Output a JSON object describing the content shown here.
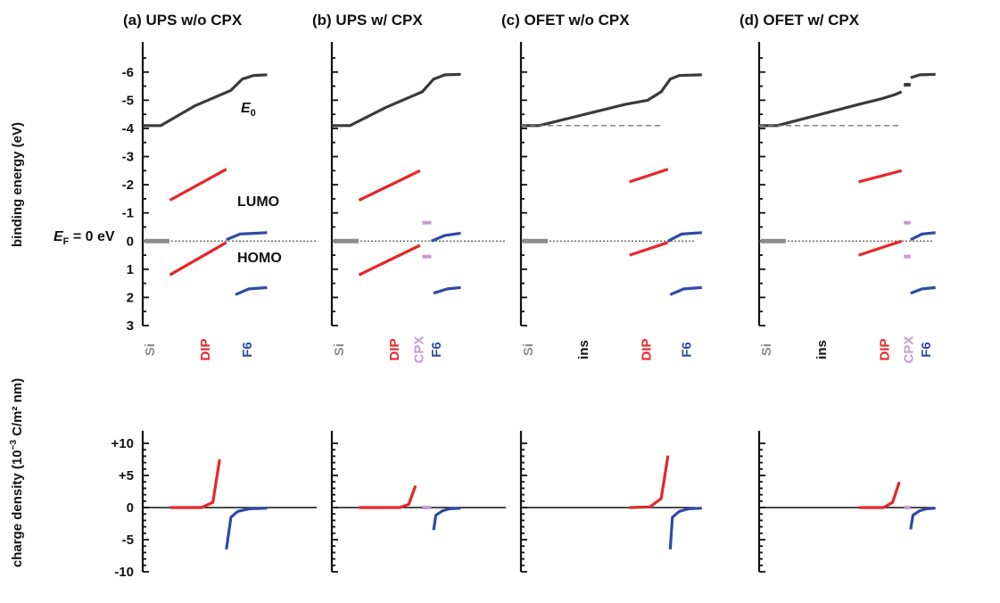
{
  "figure": {
    "ylabel_energy": "binding energy (eV)",
    "ylabel_charge_prefix": "charge density (10",
    "ylabel_charge_exp": "−3",
    "ylabel_charge_suffix": " C/m² nm)",
    "energy_ticks": [
      "-6",
      "-5",
      "-4",
      "-3",
      "-2",
      "-1",
      "0",
      "1",
      "2",
      "3"
    ],
    "charge_ticks": [
      "+10",
      "+5",
      "0",
      "-5",
      "-10"
    ],
    "ef_label_main": "E",
    "ef_label_sub": "F",
    "ef_label_tail": " = 0 eV",
    "e0_main": "E",
    "e0_sub": "0",
    "lumo_label": "LUMO",
    "homo_label": "HOMO"
  },
  "colors": {
    "vacuum": "#3a3a3a",
    "dip": "#e8262a",
    "f6": "#2e4aa6",
    "cpx": "#c79bd0",
    "si": "#8c8c8c",
    "ins": "#111111",
    "axis": "#111111"
  },
  "chart_data": [
    {
      "type": "line",
      "title": "(a) UPS w/o CPX",
      "layers": [
        "Si",
        "DIP",
        "F6"
      ],
      "energy_axis": {
        "label": "binding energy (eV)",
        "ylim": [
          -6.5,
          3
        ],
        "inverted": true
      },
      "charge_axis": {
        "label": "charge density (10−3 C/m² nm)",
        "ylim": [
          -10,
          10
        ]
      },
      "series": [
        {
          "name": "E0",
          "x": [
            0,
            0.08,
            0.23,
            0.39,
            0.44,
            0.49,
            0.55
          ],
          "y": [
            -4.1,
            -4.1,
            -4.8,
            -5.35,
            -5.75,
            -5.88,
            -5.9
          ]
        },
        {
          "name": "LUMO",
          "x": [
            0.12,
            0.37
          ],
          "y": [
            -1.45,
            -2.55
          ]
        },
        {
          "name": "HOMO",
          "x": [
            0.12,
            0.37
          ],
          "y": [
            1.2,
            0.05
          ]
        },
        {
          "name": "F6 LUMO",
          "x": [
            0.37,
            0.43,
            0.55
          ],
          "y": [
            -0.05,
            -0.25,
            -0.3
          ]
        },
        {
          "name": "F6 HOMO",
          "x": [
            0.41,
            0.47,
            0.55
          ],
          "y": [
            1.9,
            1.7,
            1.65
          ]
        },
        {
          "name": "DIP charge",
          "x": [
            0.12,
            0.26,
            0.31,
            0.34
          ],
          "y": [
            0,
            0,
            0.8,
            7.5
          ]
        },
        {
          "name": "F6 charge",
          "x": [
            0.37,
            0.39,
            0.42,
            0.47,
            0.55
          ],
          "y": [
            -6.5,
            -1.5,
            -0.6,
            -0.2,
            -0.1
          ]
        }
      ]
    },
    {
      "type": "line",
      "title": "(b) UPS w/ CPX",
      "layers": [
        "Si",
        "DIP",
        "CPX",
        "F6"
      ],
      "energy_axis": {
        "label": "binding energy (eV)",
        "ylim": [
          -6.5,
          3
        ],
        "inverted": true
      },
      "charge_axis": {
        "label": "charge density (10−3 C/m² nm)",
        "ylim": [
          -10,
          10
        ]
      },
      "series": [
        {
          "name": "E0",
          "x": [
            0,
            0.08,
            0.24,
            0.4,
            0.45,
            0.5,
            0.57
          ],
          "y": [
            -4.1,
            -4.1,
            -4.75,
            -5.3,
            -5.75,
            -5.9,
            -5.92
          ]
        },
        {
          "name": "LUMO",
          "x": [
            0.12,
            0.39
          ],
          "y": [
            -1.45,
            -2.5
          ]
        },
        {
          "name": "HOMO",
          "x": [
            0.12,
            0.39
          ],
          "y": [
            1.2,
            0.15
          ]
        },
        {
          "name": "CPX LUMO",
          "x": [
            0.4,
            0.44
          ],
          "y": [
            -0.65,
            -0.65
          ]
        },
        {
          "name": "CPX HOMO",
          "x": [
            0.4,
            0.44
          ],
          "y": [
            0.55,
            0.55
          ]
        },
        {
          "name": "F6 LUMO",
          "x": [
            0.44,
            0.5,
            0.57
          ],
          "y": [
            0,
            -0.2,
            -0.28
          ]
        },
        {
          "name": "F6 HOMO",
          "x": [
            0.45,
            0.51,
            0.57
          ],
          "y": [
            1.85,
            1.7,
            1.65
          ]
        },
        {
          "name": "DIP charge",
          "x": [
            0.12,
            0.3,
            0.34,
            0.37
          ],
          "y": [
            0,
            0,
            0.5,
            3.4
          ]
        },
        {
          "name": "CPX charge",
          "x": [
            0.4,
            0.44
          ],
          "y": [
            0,
            0
          ]
        },
        {
          "name": "F6 charge",
          "x": [
            0.45,
            0.46,
            0.49,
            0.52,
            0.57
          ],
          "y": [
            -3.5,
            -1.2,
            -0.5,
            -0.2,
            -0.1
          ]
        }
      ]
    },
    {
      "type": "line",
      "title": "(c) OFET w/o CPX",
      "layers": [
        "Si",
        "ins",
        "DIP",
        "F6"
      ],
      "energy_axis": {
        "label": "binding energy (eV)",
        "ylim": [
          -6.5,
          3
        ],
        "inverted": true
      },
      "charge_axis": {
        "label": "charge density (10−3 C/m² nm)",
        "ylim": [
          -10,
          10
        ]
      },
      "series": [
        {
          "name": "E0",
          "x": [
            0,
            0.08,
            0.46,
            0.56,
            0.62,
            0.66,
            0.7,
            0.8
          ],
          "y": [
            -4.1,
            -4.1,
            -4.85,
            -5.0,
            -5.3,
            -5.75,
            -5.88,
            -5.9
          ]
        },
        {
          "name": "Si reference",
          "x": [
            0,
            0.62
          ],
          "y": [
            -4.1,
            -4.1
          ]
        },
        {
          "name": "LUMO",
          "x": [
            0.48,
            0.65
          ],
          "y": [
            -2.1,
            -2.55
          ]
        },
        {
          "name": "HOMO",
          "x": [
            0.48,
            0.65
          ],
          "y": [
            0.5,
            0.05
          ]
        },
        {
          "name": "F6 LUMO",
          "x": [
            0.65,
            0.71,
            0.8
          ],
          "y": [
            0,
            -0.25,
            -0.3
          ]
        },
        {
          "name": "F6 HOMO",
          "x": [
            0.66,
            0.72,
            0.8
          ],
          "y": [
            1.9,
            1.7,
            1.65
          ]
        },
        {
          "name": "DIP charge",
          "x": [
            0.48,
            0.57,
            0.62,
            0.65
          ],
          "y": [
            0,
            0.1,
            1.4,
            8.1
          ]
        },
        {
          "name": "F6 charge",
          "x": [
            0.66,
            0.67,
            0.7,
            0.74,
            0.8
          ],
          "y": [
            -6.5,
            -1.5,
            -0.6,
            -0.2,
            -0.1
          ]
        }
      ]
    },
    {
      "type": "line",
      "title": "(d) OFET w/ CPX",
      "layers": [
        "Si",
        "ins",
        "DIP",
        "CPX",
        "F6"
      ],
      "energy_axis": {
        "label": "binding energy (eV)",
        "ylim": [
          -6.5,
          3
        ],
        "inverted": true
      },
      "charge_axis": {
        "label": "charge density (10−3 C/m² nm)",
        "ylim": [
          -10,
          10
        ]
      },
      "series": [
        {
          "name": "E0",
          "x": [
            0,
            0.08,
            0.44,
            0.54,
            0.6,
            0.63
          ],
          "y": [
            -4.1,
            -4.1,
            -4.85,
            -5.05,
            -5.2,
            -5.3
          ]
        },
        {
          "name": "CPX E0",
          "x": [
            0.64,
            0.67
          ],
          "y": [
            -5.55,
            -5.55
          ]
        },
        {
          "name": "F6 E0",
          "x": [
            0.67,
            0.71,
            0.78
          ],
          "y": [
            -5.8,
            -5.9,
            -5.92
          ]
        },
        {
          "name": "Si reference",
          "x": [
            0,
            0.62
          ],
          "y": [
            -4.1,
            -4.1
          ]
        },
        {
          "name": "LUMO",
          "x": [
            0.44,
            0.63
          ],
          "y": [
            -2.1,
            -2.5
          ]
        },
        {
          "name": "HOMO",
          "x": [
            0.44,
            0.63
          ],
          "y": [
            0.5,
            0.0
          ]
        },
        {
          "name": "CPX LUMO",
          "x": [
            0.64,
            0.67
          ],
          "y": [
            -0.65,
            -0.65
          ]
        },
        {
          "name": "CPX HOMO",
          "x": [
            0.64,
            0.67
          ],
          "y": [
            0.55,
            0.55
          ]
        },
        {
          "name": "F6 LUMO",
          "x": [
            0.67,
            0.72,
            0.78
          ],
          "y": [
            -0.05,
            -0.25,
            -0.3
          ]
        },
        {
          "name": "F6 HOMO",
          "x": [
            0.67,
            0.72,
            0.78
          ],
          "y": [
            1.85,
            1.7,
            1.65
          ]
        },
        {
          "name": "DIP charge",
          "x": [
            0.44,
            0.55,
            0.59,
            0.62
          ],
          "y": [
            0,
            0,
            0.8,
            4.0
          ]
        },
        {
          "name": "CPX charge",
          "x": [
            0.64,
            0.67
          ],
          "y": [
            0,
            0
          ]
        },
        {
          "name": "F6 charge",
          "x": [
            0.67,
            0.68,
            0.71,
            0.74,
            0.78
          ],
          "y": [
            -3.4,
            -1.2,
            -0.5,
            -0.2,
            -0.1
          ]
        }
      ]
    }
  ]
}
